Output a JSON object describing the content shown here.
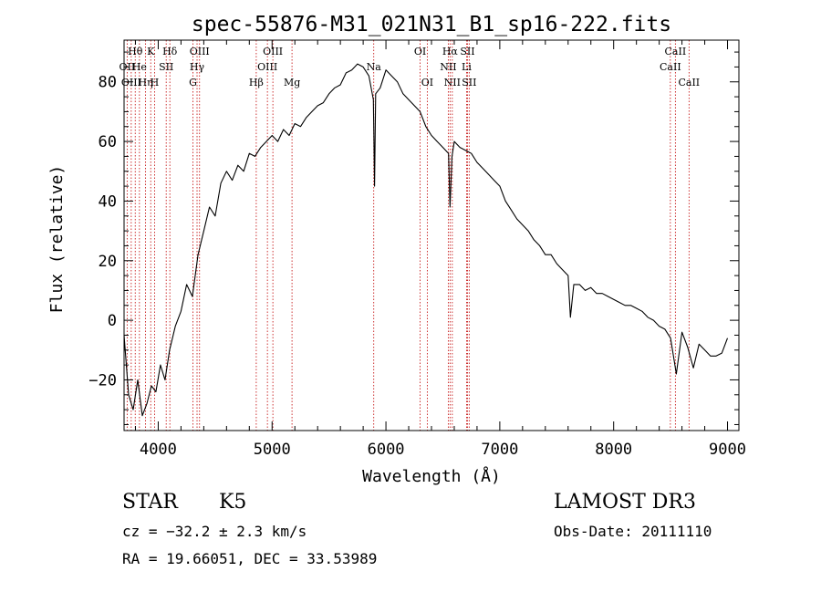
{
  "chart_data": {
    "type": "line",
    "title": "spec-55876-M31_021N31_B1_sp16-222.fits",
    "xlabel": "Wavelength (Å)",
    "ylabel": "Flux (relative)",
    "xlim": [
      3700,
      9100
    ],
    "ylim": [
      -37,
      94
    ],
    "xticks": [
      4000,
      5000,
      6000,
      7000,
      8000,
      9000
    ],
    "yticks": [
      -20,
      0,
      20,
      40,
      60,
      80
    ],
    "grid": false,
    "series": [
      {
        "name": "flux",
        "x": [
          3700,
          3740,
          3780,
          3820,
          3860,
          3900,
          3940,
          3980,
          4020,
          4060,
          4100,
          4150,
          4200,
          4250,
          4300,
          4350,
          4400,
          4450,
          4500,
          4550,
          4600,
          4650,
          4700,
          4750,
          4800,
          4850,
          4900,
          4950,
          5000,
          5050,
          5100,
          5150,
          5200,
          5250,
          5300,
          5350,
          5400,
          5450,
          5500,
          5550,
          5600,
          5650,
          5700,
          5750,
          5800,
          5850,
          5890,
          5900,
          5910,
          5950,
          6000,
          6050,
          6100,
          6150,
          6200,
          6250,
          6300,
          6350,
          6400,
          6450,
          6500,
          6550,
          6563,
          6580,
          6600,
          6650,
          6700,
          6750,
          6800,
          6850,
          6900,
          6950,
          7000,
          7050,
          7100,
          7150,
          7200,
          7250,
          7300,
          7350,
          7400,
          7450,
          7500,
          7550,
          7600,
          7620,
          7650,
          7700,
          7750,
          7800,
          7850,
          7900,
          7950,
          8000,
          8050,
          8100,
          8150,
          8200,
          8250,
          8300,
          8350,
          8400,
          8450,
          8500,
          8550,
          8600,
          8650,
          8700,
          8750,
          8800,
          8850,
          8900,
          8950,
          9000
        ],
        "y": [
          -5,
          -25,
          -30,
          -20,
          -32,
          -28,
          -22,
          -24,
          -15,
          -20,
          -10,
          -2,
          3,
          12,
          8,
          22,
          30,
          38,
          35,
          46,
          50,
          47,
          52,
          50,
          56,
          55,
          58,
          60,
          62,
          60,
          64,
          62,
          66,
          65,
          68,
          70,
          72,
          73,
          76,
          78,
          79,
          83,
          84,
          86,
          85,
          82,
          74,
          45,
          76,
          78,
          84,
          82,
          80,
          76,
          74,
          72,
          70,
          65,
          62,
          60,
          58,
          56,
          38,
          55,
          60,
          58,
          57,
          56,
          53,
          51,
          49,
          47,
          45,
          40,
          37,
          34,
          32,
          30,
          27,
          25,
          22,
          22,
          19,
          17,
          15,
          1,
          12,
          12,
          10,
          11,
          9,
          9,
          8,
          7,
          6,
          5,
          5,
          4,
          3,
          1,
          0,
          -2,
          -3,
          -6,
          -18,
          -4,
          -9,
          -16,
          -8,
          -10,
          -12,
          -12,
          -11,
          -6
        ]
      }
    ],
    "lines": [
      {
        "label": "Hθ",
        "wave": 3798,
        "row": 0
      },
      {
        "label": "OII",
        "wave": 3727,
        "row": 1
      },
      {
        "label": "OIII",
        "wave": 3763,
        "row": 2
      },
      {
        "label": "He",
        "wave": 3835,
        "row": 1
      },
      {
        "label": "Hη",
        "wave": 3889,
        "row": 2
      },
      {
        "label": "K",
        "wave": 3934,
        "row": 0
      },
      {
        "label": "SII",
        "wave": 4070,
        "row": 1
      },
      {
        "label": "H",
        "wave": 3968,
        "row": 2
      },
      {
        "label": "Hδ",
        "wave": 4102,
        "row": 0
      },
      {
        "label": "OIII",
        "wave": 4363,
        "row": 0
      },
      {
        "label": "Hγ",
        "wave": 4341,
        "row": 1
      },
      {
        "label": "G",
        "wave": 4305,
        "row": 2
      },
      {
        "label": "Hβ",
        "wave": 4861,
        "row": 2
      },
      {
        "label": "OIII",
        "wave": 4959,
        "row": 1
      },
      {
        "label": "OIII",
        "wave": 5007,
        "row": 0
      },
      {
        "label": "Mg",
        "wave": 5175,
        "row": 2
      },
      {
        "label": "Na",
        "wave": 5893,
        "row": 1
      },
      {
        "label": "OI",
        "wave": 6300,
        "row": 0
      },
      {
        "label": "OI",
        "wave": 6363,
        "row": 2
      },
      {
        "label": "Hα",
        "wave": 6563,
        "row": 0
      },
      {
        "label": "NII",
        "wave": 6548,
        "row": 1
      },
      {
        "label": "NII",
        "wave": 6583,
        "row": 2
      },
      {
        "label": "SII",
        "wave": 6716,
        "row": 0
      },
      {
        "label": "Li",
        "wave": 6708,
        "row": 1
      },
      {
        "label": "SII",
        "wave": 6731,
        "row": 2
      },
      {
        "label": "CaII",
        "wave": 8542,
        "row": 0
      },
      {
        "label": "CaII",
        "wave": 8498,
        "row": 1
      },
      {
        "label": "CaII",
        "wave": 8662,
        "row": 2
      }
    ]
  },
  "info": {
    "object_class": "STAR",
    "subclass": "K5",
    "survey": "LAMOST DR3",
    "redshift": "cz = −32.2 ± 2.3 km/s",
    "obs_date": "Obs-Date: 20111110",
    "coordinates": "RA =  19.66051, DEC =  33.53989"
  },
  "colors": {
    "spectrum": "#000000",
    "line_markers": "#c00000",
    "axis": "#000000"
  }
}
